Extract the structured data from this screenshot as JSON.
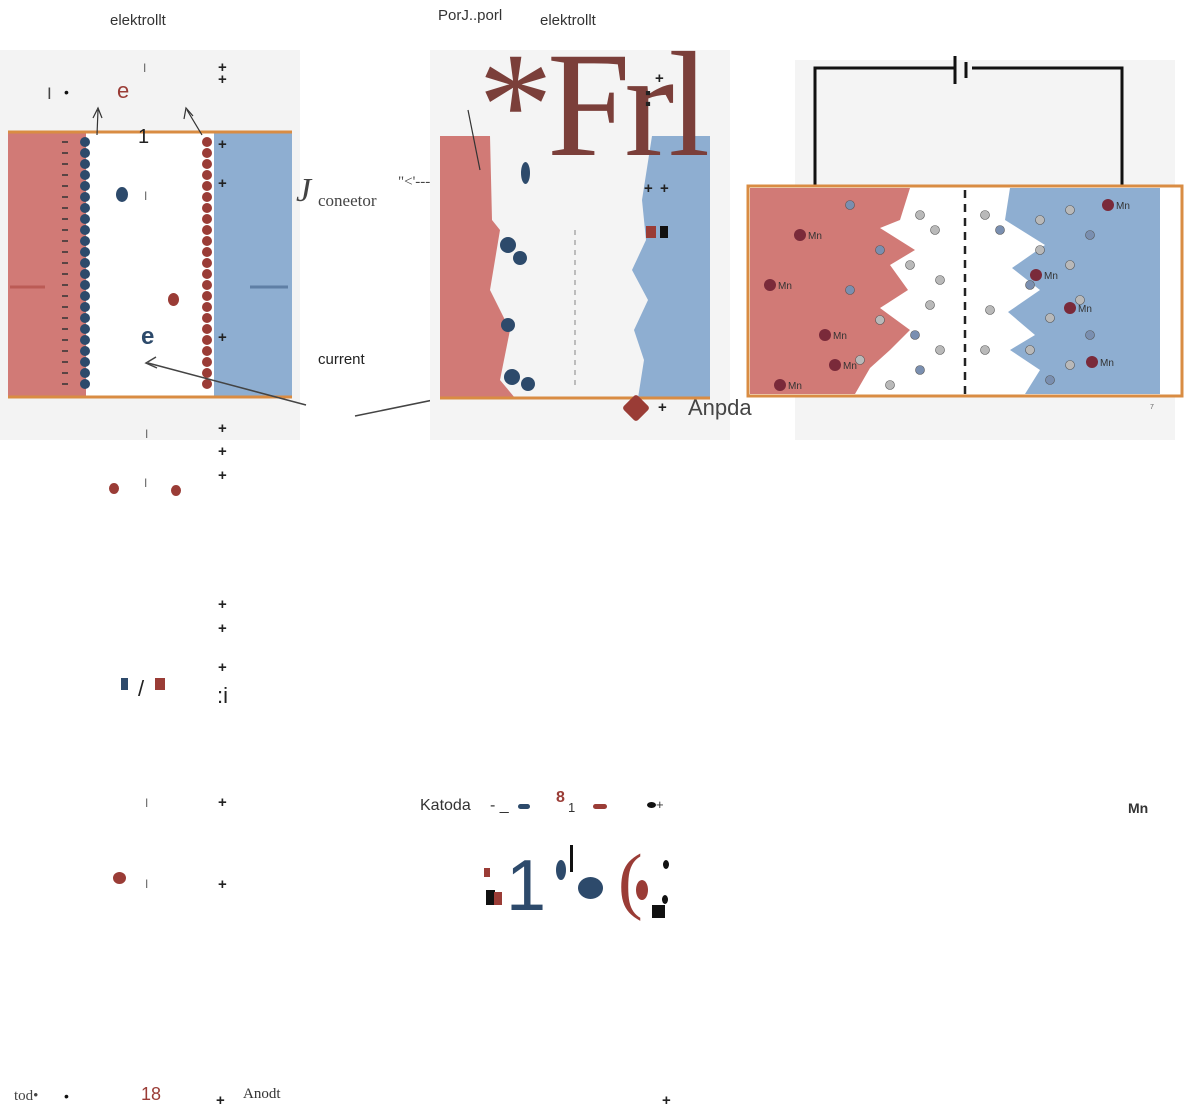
{
  "labels": {
    "elektrolit_left": "elektrollt",
    "porl_top": "PorJ..porl",
    "elektrolit_mid": "elektrollt",
    "big_title": "*Frl",
    "big_dots": ":",
    "e_top": "e",
    "one_top": "1",
    "connector_j": "J",
    "connector_word": "coneetor",
    "connector_arrow": "\"<'---",
    "e_mid": "e",
    "current": "current",
    "anoda_mid": "Anpda",
    "page_number": "7",
    "colon_i": ":i",
    "katoda": "Katoda",
    "katoda_dash": "- _",
    "katoda_eight": "8",
    "katoda_sub1": "1",
    "big_one": "1",
    "paren": "(",
    "mn_right": "Mn",
    "tod": "tod•",
    "bottom_eight": "18",
    "anodt": "Anodt",
    "mn_ion": "Mn",
    "plus": "+",
    "bullet": "•",
    "pipe": "I"
  },
  "colors": {
    "cathode_red": "#d17a76",
    "anode_blue": "#8eaed1",
    "ion_red": "#9a3c36",
    "ion_blue": "#2d4a6b",
    "frame_orange": "#d98c43"
  }
}
